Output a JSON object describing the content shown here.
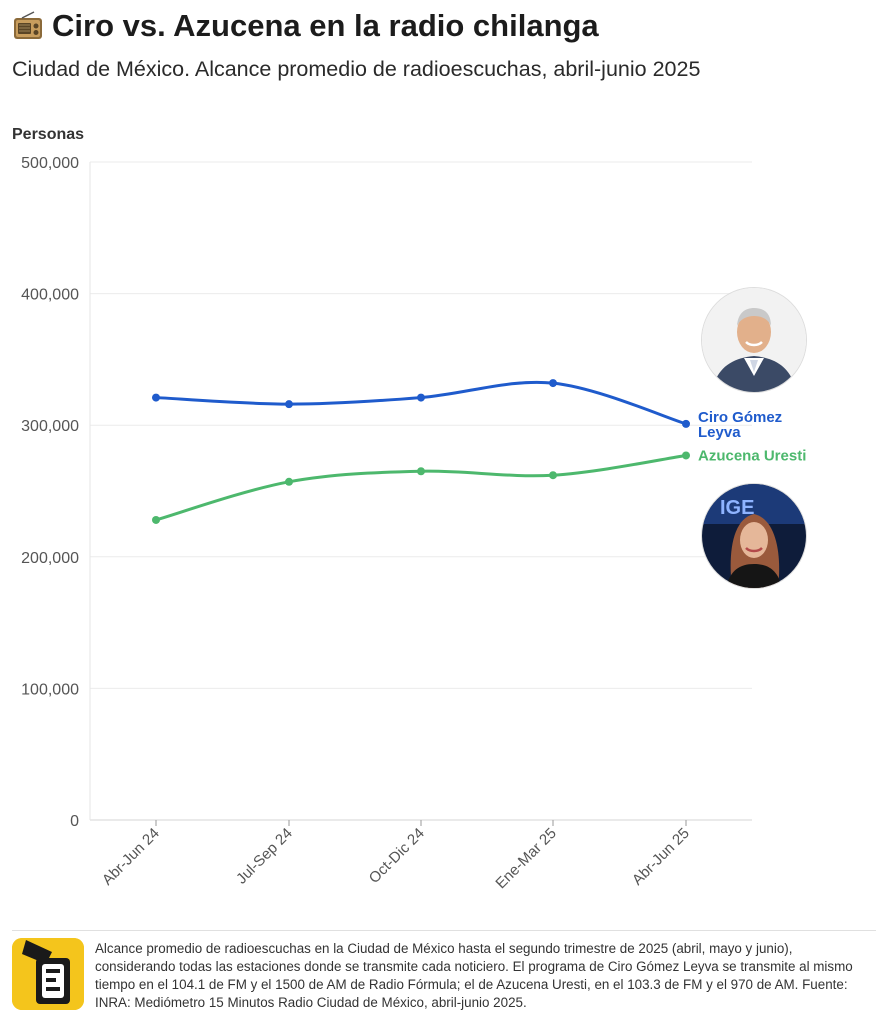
{
  "header": {
    "title": "Ciro vs. Azucena en la radio chilanga",
    "subtitle": "Ciudad de México. Alcance promedio de radioescuchas, abril-junio 2025"
  },
  "footer": {
    "note": "Alcance promedio de radioescuchas en la Ciudad de México hasta el segundo trimestre de 2025 (abril, mayo y junio), considerando todas las estaciones donde se transmite cada noticiero. El programa de Ciro Gómez Leyva se transmite al mismo tiempo en el 104.1 de FM y el 1500 de AM de Radio Fórmula; el de Azucena Uresti, en el 103.3 de FM y el 970 de AM. Fuente: INRA: Mediómetro 15 Minutos Radio Ciudad de México, abril-junio 2025."
  },
  "icons": {
    "title_icon": "radio-icon",
    "logo": "newspaper-logo-icon",
    "ciro_avatar": "ciro-portrait-avatar",
    "azucena_avatar": "azucena-portrait-avatar"
  },
  "colors": {
    "ciro": "#1f5bcc",
    "azucena": "#4db86d",
    "grid": "#ebebeb",
    "logo": "#f4c51c"
  },
  "chart_data": {
    "type": "line",
    "title": "Ciro vs. Azucena en la radio chilanga",
    "ylabel": "Personas",
    "xlabel": "",
    "categories": [
      "Abr-Jun 24",
      "Jul-Sep 24",
      "Oct-Dic 24",
      "Ene-Mar 25",
      "Abr-Jun 25"
    ],
    "ylim": [
      0,
      500000
    ],
    "yticks": [
      0,
      100000,
      200000,
      300000,
      400000,
      500000
    ],
    "ytick_labels": [
      "0",
      "100,000",
      "200,000",
      "300,000",
      "400,000",
      "500,000"
    ],
    "grid": true,
    "legend": "direct labels at line ends",
    "series": [
      {
        "name": "Ciro Gómez Leyva",
        "label_lines": [
          "Ciro Gómez",
          "Leyva"
        ],
        "color": "#1f5bcc",
        "values": [
          321000,
          316000,
          321000,
          332000,
          301000
        ]
      },
      {
        "name": "Azucena Uresti",
        "label_lines": [
          "Azucena Uresti"
        ],
        "color": "#4db86d",
        "values": [
          228000,
          257000,
          265000,
          262000,
          277000
        ]
      }
    ]
  }
}
